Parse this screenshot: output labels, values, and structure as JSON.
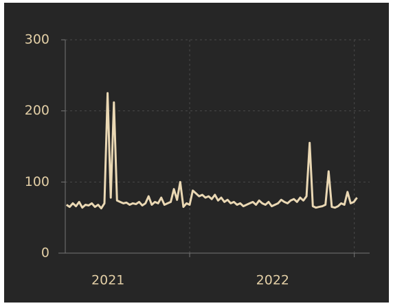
{
  "chart_data": {
    "type": "line",
    "x": [
      "2020-10-01",
      "2020-10-08",
      "2020-10-15",
      "2020-10-22",
      "2020-10-29",
      "2020-11-05",
      "2020-11-12",
      "2020-11-19",
      "2020-11-26",
      "2020-12-03",
      "2020-12-10",
      "2020-12-17",
      "2020-12-24",
      "2020-12-31",
      "2021-01-07",
      "2021-01-14",
      "2021-01-21",
      "2021-01-28",
      "2021-02-04",
      "2021-02-11",
      "2021-02-18",
      "2021-02-25",
      "2021-03-04",
      "2021-03-11",
      "2021-03-18",
      "2021-03-25",
      "2021-04-01",
      "2021-04-08",
      "2021-04-15",
      "2021-04-22",
      "2021-04-29",
      "2021-05-06",
      "2021-05-13",
      "2021-05-20",
      "2021-05-27",
      "2021-06-03",
      "2021-06-10",
      "2021-06-17",
      "2021-06-24",
      "2021-07-01",
      "2021-07-08",
      "2021-07-15",
      "2021-07-22",
      "2021-07-29",
      "2021-08-05",
      "2021-08-12",
      "2021-08-19",
      "2021-08-26",
      "2021-09-02",
      "2021-09-09",
      "2021-09-16",
      "2021-09-23",
      "2021-09-30",
      "2021-10-07",
      "2021-10-14",
      "2021-10-21",
      "2021-10-28",
      "2021-11-04",
      "2021-11-11",
      "2021-11-18",
      "2021-11-25",
      "2021-12-02",
      "2021-12-09",
      "2021-12-16",
      "2021-12-23",
      "2021-12-30",
      "2022-01-06",
      "2022-01-13",
      "2022-01-20",
      "2022-01-27",
      "2022-02-03",
      "2022-02-10",
      "2022-02-17",
      "2022-02-24",
      "2022-03-03",
      "2022-03-10",
      "2022-03-17",
      "2022-03-24",
      "2022-03-31",
      "2022-04-07",
      "2022-04-14",
      "2022-04-21",
      "2022-04-28",
      "2022-05-05",
      "2022-05-12",
      "2022-05-19",
      "2022-05-26",
      "2022-06-02",
      "2022-06-09",
      "2022-06-16",
      "2022-06-23",
      "2022-06-30",
      "2022-07-07"
    ],
    "series": [
      {
        "color": "#ead8b4",
        "values": [
          68,
          65,
          70,
          66,
          72,
          64,
          68,
          67,
          70,
          65,
          68,
          63,
          70,
          225,
          78,
          212,
          74,
          72,
          70,
          71,
          68,
          70,
          69,
          72,
          67,
          70,
          80,
          68,
          72,
          70,
          78,
          68,
          70,
          72,
          90,
          75,
          100,
          65,
          70,
          68,
          88,
          84,
          80,
          82,
          78,
          80,
          76,
          82,
          74,
          78,
          72,
          75,
          70,
          72,
          68,
          70,
          66,
          68,
          70,
          72,
          68,
          74,
          70,
          68,
          72,
          66,
          68,
          70,
          75,
          72,
          70,
          74,
          76,
          72,
          78,
          74,
          80,
          155,
          66,
          64,
          65,
          66,
          68,
          115,
          65,
          64,
          66,
          70,
          68,
          86,
          70,
          72,
          78
        ]
      }
    ],
    "xlim": [
      "2020-09-13",
      "2022-08-04"
    ],
    "xticks": [
      {
        "value": "2021-01-01",
        "label": "2021"
      },
      {
        "value": "2022-01-01",
        "label": "2022"
      }
    ],
    "x_grid": [
      "2021-07-01",
      "2022-07-01"
    ],
    "ylim": [
      0,
      300
    ],
    "yticks": [
      0,
      100,
      200,
      300
    ],
    "grid": true
  }
}
